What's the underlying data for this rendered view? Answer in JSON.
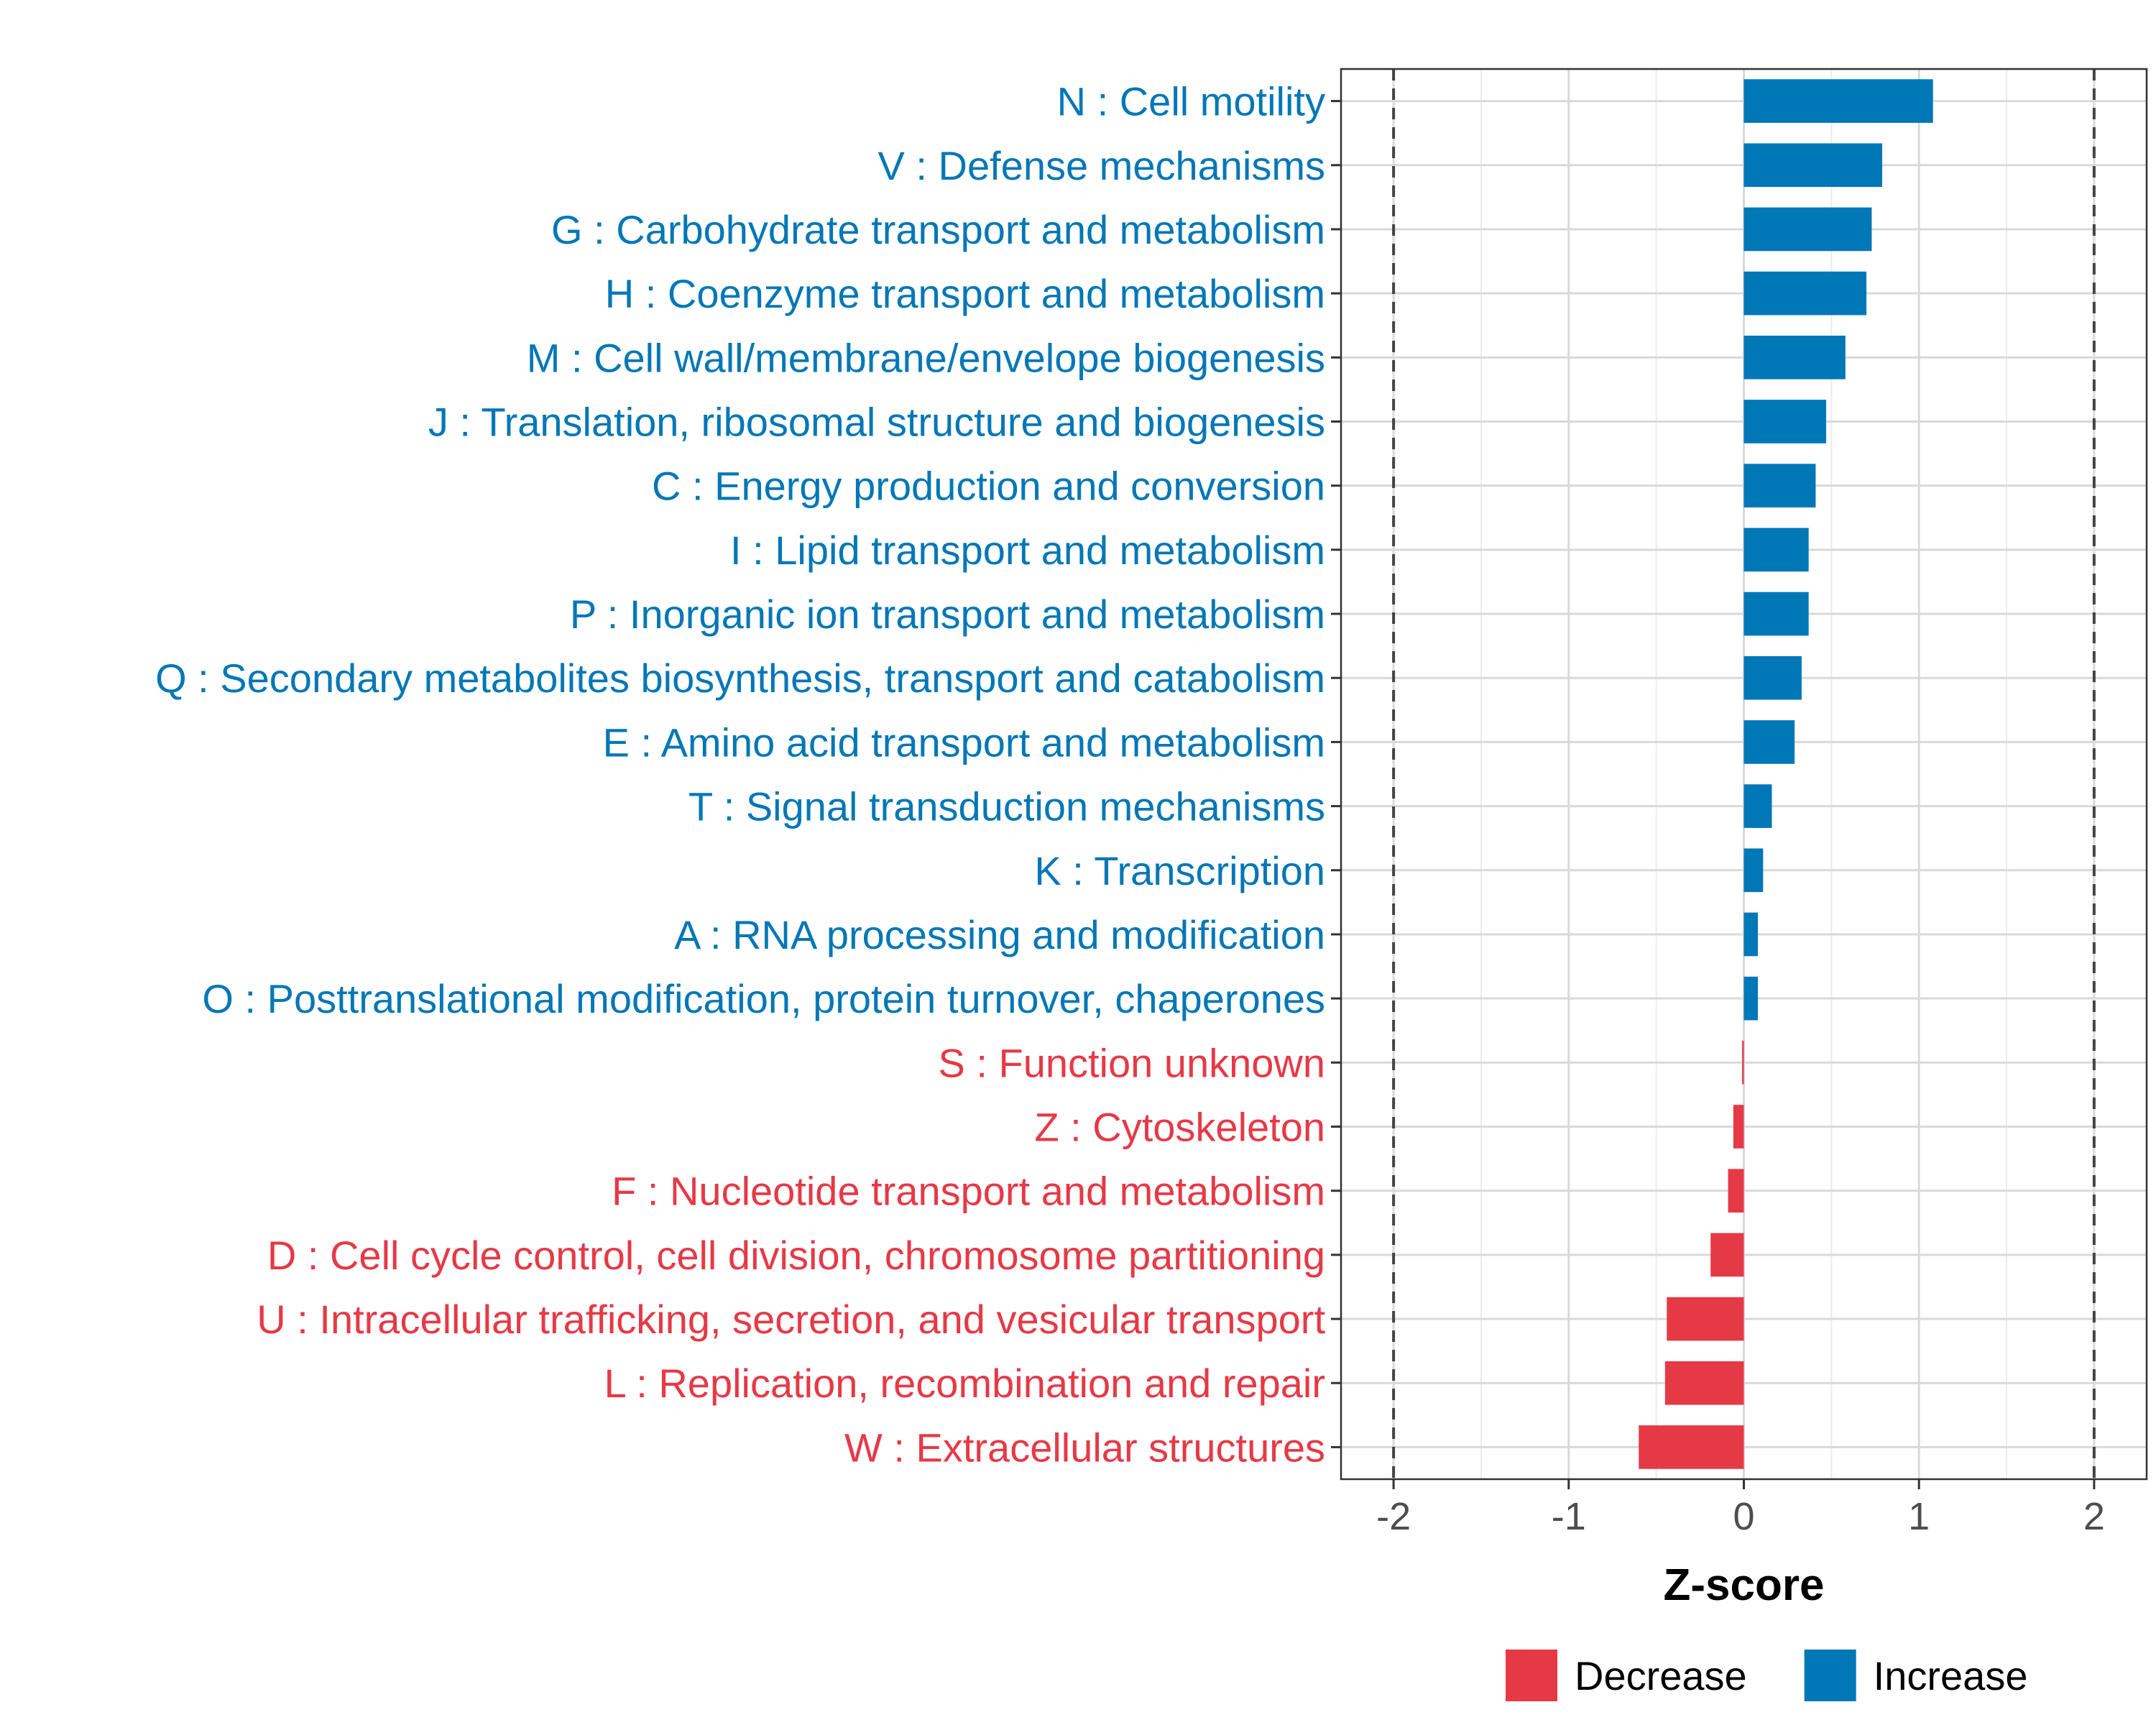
{
  "chart_data": {
    "type": "bar",
    "orientation": "horizontal",
    "xlabel": "Z-score",
    "xlim": [
      -2.3,
      2.3
    ],
    "x_ticks": [
      -2,
      -1,
      0,
      1,
      2
    ],
    "x_tick_labels": [
      "-2",
      "-1",
      "0",
      "1",
      "2"
    ],
    "reference_lines": [
      -2,
      2
    ],
    "grid": true,
    "legend_position": "bottom",
    "legend": [
      {
        "label": "Decrease",
        "color": "#e63946"
      },
      {
        "label": "Increase",
        "color": "#0077b6"
      }
    ],
    "categories": [
      "N : Cell motility",
      "V : Defense mechanisms",
      "G : Carbohydrate transport and metabolism",
      "H : Coenzyme transport and metabolism",
      "M : Cell wall/membrane/envelope biogenesis",
      "J : Translation, ribosomal structure and biogenesis",
      "C : Energy production and conversion",
      "I : Lipid transport and metabolism",
      "P : Inorganic ion transport and metabolism",
      "Q : Secondary metabolites biosynthesis, transport and catabolism",
      "E : Amino acid transport and metabolism",
      "T : Signal transduction mechanisms",
      "K : Transcription",
      "A : RNA processing and modification",
      "O : Posttranslational modification, protein turnover, chaperones",
      "S : Function unknown",
      "Z : Cytoskeleton",
      "F : Nucleotide transport and metabolism",
      "D : Cell cycle control, cell division, chromosome partitioning",
      "U : Intracellular trafficking, secretion, and vesicular transport",
      "L : Replication, recombination and repair",
      "W : Extracellular structures"
    ],
    "values": [
      1.08,
      0.79,
      0.73,
      0.7,
      0.58,
      0.47,
      0.41,
      0.37,
      0.37,
      0.33,
      0.29,
      0.16,
      0.11,
      0.08,
      0.08,
      -0.01,
      -0.06,
      -0.09,
      -0.19,
      -0.44,
      -0.45,
      -0.6
    ],
    "groups": [
      "Increase",
      "Increase",
      "Increase",
      "Increase",
      "Increase",
      "Increase",
      "Increase",
      "Increase",
      "Increase",
      "Increase",
      "Increase",
      "Increase",
      "Increase",
      "Increase",
      "Increase",
      "Decrease",
      "Decrease",
      "Decrease",
      "Decrease",
      "Decrease",
      "Decrease",
      "Decrease"
    ]
  }
}
